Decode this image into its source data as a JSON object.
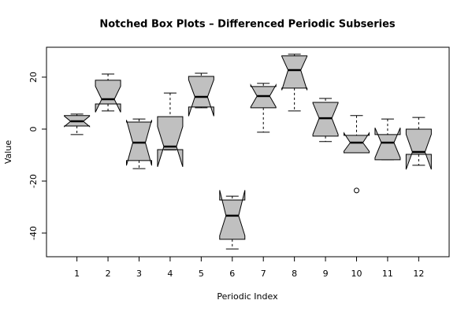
{
  "chart_data": {
    "type": "boxplot",
    "title": "Notched Box Plots – Differenced Periodic Subseries",
    "x_label": "Periodic Index",
    "y_label": "Value",
    "color": "#c0c0c0",
    "categories": [
      "1",
      "2",
      "3",
      "4",
      "5",
      "6",
      "7",
      "8",
      "9",
      "10",
      "11",
      "12"
    ],
    "xlim": [
      0.02,
      12.98
    ],
    "ylim": [
      -49.1,
      31.5
    ],
    "yticks": [
      -40,
      -20,
      0,
      20
    ],
    "boxes": [
      {
        "whisker_low": -2.1,
        "q1": 1.2,
        "median": 3.0,
        "q3": 5.2,
        "whisker_high": 5.8,
        "notch": [
          1.0,
          5.0
        ],
        "outliers": []
      },
      {
        "whisker_low": 7.0,
        "q1": 9.7,
        "median": 11.5,
        "q3": 18.8,
        "whisker_high": 21.2,
        "notch": [
          6.5,
          16.5
        ],
        "outliers": []
      },
      {
        "whisker_low": -15.2,
        "q1": -12.1,
        "median": -5.2,
        "q3": 2.7,
        "whisker_high": 3.9,
        "notch": [
          -14.0,
          3.5
        ],
        "outliers": []
      },
      {
        "whisker_low": -8.0,
        "q1": -7.9,
        "median": -6.7,
        "q3": 4.8,
        "whisker_high": 13.9,
        "notch": [
          -14.5,
          1.0
        ],
        "outliers": []
      },
      {
        "whisker_low": 8.2,
        "q1": 8.5,
        "median": 12.4,
        "q3": 20.3,
        "whisker_high": 21.5,
        "notch": [
          5.0,
          19.0
        ],
        "outliers": []
      },
      {
        "whisker_low": -46.1,
        "q1": -42.4,
        "median": -33.3,
        "q3": -27.3,
        "whisker_high": -25.8,
        "notch": [
          -41.0,
          -23.5
        ],
        "outliers": []
      },
      {
        "whisker_low": -1.2,
        "q1": 8.2,
        "median": 12.7,
        "q3": 16.4,
        "whisker_high": 17.6,
        "notch": [
          8.5,
          17.0
        ],
        "outliers": []
      },
      {
        "whisker_low": 7.0,
        "q1": 15.8,
        "median": 22.7,
        "q3": 28.2,
        "whisker_high": 28.8,
        "notch": [
          15.0,
          28.0
        ],
        "outliers": []
      },
      {
        "whisker_low": -4.8,
        "q1": -2.7,
        "median": 4.2,
        "q3": 10.3,
        "whisker_high": 11.8,
        "notch": [
          -2.0,
          10.0
        ],
        "outliers": []
      },
      {
        "whisker_low": -9.1,
        "q1": -9.1,
        "median": -5.2,
        "q3": -2.4,
        "whisker_high": 5.2,
        "notch": [
          -8.5,
          -1.5
        ],
        "outliers": [
          -23.6
        ]
      },
      {
        "whisker_low": -11.8,
        "q1": -11.8,
        "median": -5.2,
        "q3": -2.1,
        "whisker_high": 3.9,
        "notch": [
          -11.0,
          0.5
        ],
        "outliers": []
      },
      {
        "whisker_low": -13.9,
        "q1": -9.7,
        "median": -8.8,
        "q3": 0.0,
        "whisker_high": 4.5,
        "notch": [
          -15.5,
          -2.0
        ],
        "outliers": []
      }
    ]
  }
}
